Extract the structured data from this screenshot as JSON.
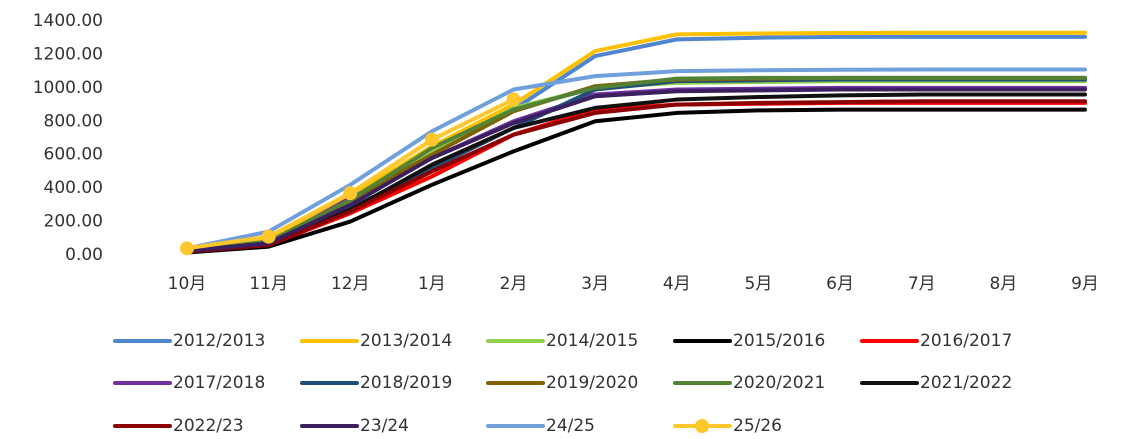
{
  "chart_data": {
    "type": "line",
    "categories": [
      "10月",
      "11月",
      "12月",
      "1月",
      "2月",
      "3月",
      "4月",
      "5月",
      "6月",
      "7月",
      "8月",
      "9月"
    ],
    "ylim": [
      0,
      1400
    ],
    "yticks": [
      {
        "value": 0,
        "label": "0.00"
      },
      {
        "value": 200,
        "label": "200.00"
      },
      {
        "value": 400,
        "label": "400.00"
      },
      {
        "value": 600,
        "label": "600.00"
      },
      {
        "value": 800,
        "label": "800.00"
      },
      {
        "value": 1000,
        "label": "1000.00"
      },
      {
        "value": 1200,
        "label": "1200.00"
      },
      {
        "value": 1400,
        "label": "1400.00"
      }
    ],
    "series": [
      {
        "name": "2012/2013",
        "color": "#4f86d0",
        "values": [
          30,
          90,
          300,
          600,
          870,
          1190,
          1290,
          1300,
          1305,
          1305,
          1305,
          1305
        ]
      },
      {
        "name": "2013/2014",
        "color": "#ffc000",
        "values": [
          40,
          100,
          350,
          650,
          900,
          1220,
          1320,
          1325,
          1328,
          1330,
          1330,
          1330
        ]
      },
      {
        "name": "2014/2015",
        "color": "#92d050",
        "values": [
          25,
          80,
          320,
          620,
          880,
          1000,
          1030,
          1035,
          1040,
          1040,
          1040,
          1040
        ]
      },
      {
        "name": "2015/2016",
        "color": "#000000",
        "values": [
          15,
          50,
          200,
          420,
          620,
          800,
          850,
          865,
          870,
          870,
          870,
          870
        ]
      },
      {
        "name": "2016/2017",
        "color": "#ff0000",
        "values": [
          20,
          60,
          250,
          470,
          720,
          870,
          900,
          905,
          910,
          910,
          910,
          910
        ]
      },
      {
        "name": "2017/2018",
        "color": "#7030a0",
        "values": [
          25,
          70,
          340,
          580,
          800,
          960,
          990,
          995,
          1000,
          1000,
          1000,
          1000
        ]
      },
      {
        "name": "2018/2019",
        "color": "#1f4e79",
        "values": [
          20,
          60,
          280,
          520,
          760,
          990,
          1040,
          1045,
          1050,
          1050,
          1050,
          1050
        ]
      },
      {
        "name": "2019/2020",
        "color": "#806000",
        "values": [
          25,
          75,
          330,
          600,
          860,
          1010,
          1050,
          1055,
          1060,
          1060,
          1060,
          1060
        ]
      },
      {
        "name": "2020/2021",
        "color": "#548235",
        "values": [
          25,
          80,
          330,
          640,
          870,
          1000,
          1055,
          1060,
          1060,
          1060,
          1060,
          1060
        ]
      },
      {
        "name": "2021/2022",
        "color": "#111111",
        "values": [
          20,
          65,
          270,
          540,
          760,
          880,
          930,
          945,
          955,
          960,
          960,
          960
        ]
      },
      {
        "name": "2022/23",
        "color": "#8b0000",
        "values": [
          20,
          60,
          260,
          500,
          720,
          850,
          900,
          910,
          915,
          920,
          920,
          920
        ]
      },
      {
        "name": "23/24",
        "color": "#3b1f5e",
        "values": [
          25,
          70,
          300,
          580,
          790,
          950,
          980,
          985,
          990,
          990,
          990,
          990
        ]
      },
      {
        "name": "24/25",
        "color": "#6fa0dc",
        "values": [
          40,
          140,
          420,
          740,
          990,
          1070,
          1100,
          1105,
          1108,
          1110,
          1110,
          1110
        ]
      },
      {
        "name": "25/26",
        "color": "#ffc72c",
        "markers": true,
        "values": [
          40,
          110,
          370,
          690,
          930,
          null,
          null,
          null,
          null,
          null,
          null,
          null
        ]
      }
    ]
  }
}
